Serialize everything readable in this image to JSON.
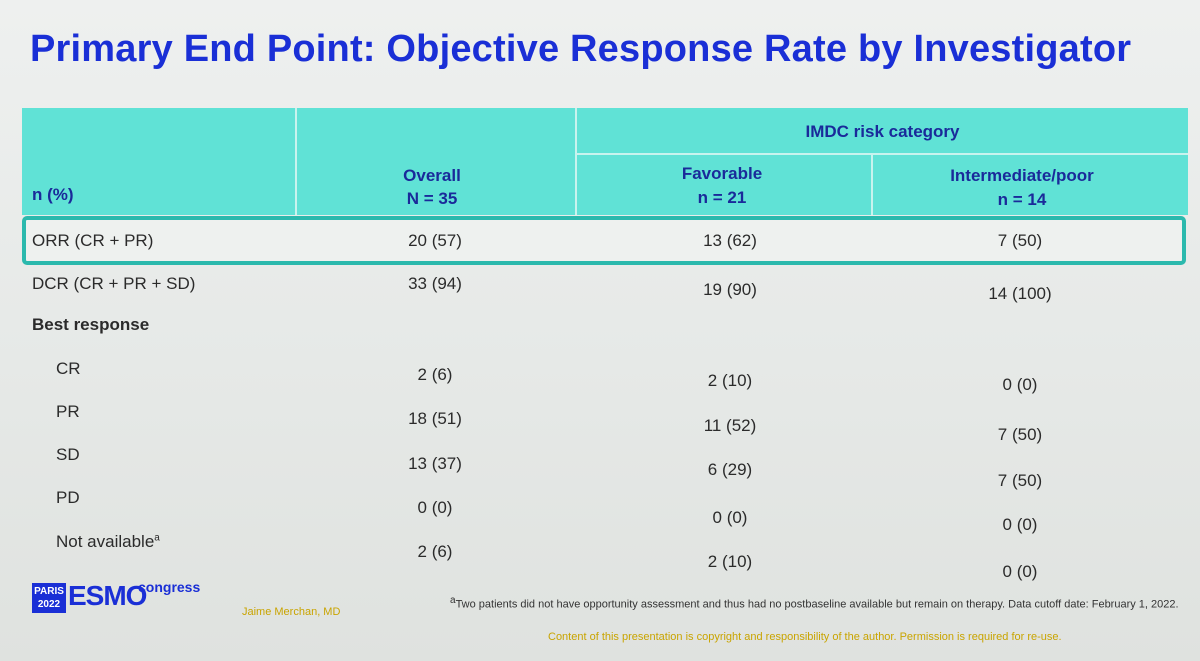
{
  "title": "Primary End Point: Objective Response Rate by Investigator",
  "header": {
    "row_label": "n (%)",
    "overall": {
      "label": "Overall",
      "n": "N = 35"
    },
    "group_label": "IMDC risk category",
    "favorable": {
      "label": "Favorable",
      "n": "n = 21"
    },
    "intermediate": {
      "label": "Intermediate/poor",
      "n": "n = 14"
    }
  },
  "rows": [
    {
      "label": "ORR (CR + PR)",
      "overall": "20 (57)",
      "favorable": "13 (62)",
      "intermediate": "7 (50)"
    },
    {
      "label": "DCR (CR + PR + SD)",
      "overall": "33 (94)",
      "favorable": "19 (90)",
      "intermediate": "14 (100)"
    },
    {
      "label": "Best response"
    },
    {
      "label": "CR",
      "overall": "2 (6)",
      "favorable": "2 (10)",
      "intermediate": "0 (0)"
    },
    {
      "label": "PR",
      "overall": "18 (51)",
      "favorable": "11 (52)",
      "intermediate": "7 (50)"
    },
    {
      "label": "SD",
      "overall": "13 (37)",
      "favorable": "6 (29)",
      "intermediate": "7 (50)"
    },
    {
      "label": "PD",
      "overall": "0 (0)",
      "favorable": "0 (0)",
      "intermediate": "0 (0)"
    },
    {
      "label": "Not available",
      "label_sup": "a",
      "overall": "2 (6)",
      "favorable": "2 (10)",
      "intermediate": "0 (0)"
    }
  ],
  "footnote": {
    "marker": "a",
    "text": "Two patients did not have opportunity assessment and thus had no postbaseline available but remain on therapy. Data cutoff date: February 1, 2022."
  },
  "copyright": "Content of this presentation is copyright and responsibility of the author. Permission is required for re-use.",
  "author": "Jaime Merchan, MD",
  "logo": {
    "city": "PARIS",
    "year": "2022",
    "brand": "ESMO",
    "event": "congress"
  },
  "colors": {
    "title": "#1a2fd6",
    "header_bg": "#60e2d6",
    "highlight_border": "#2bb9ad"
  }
}
